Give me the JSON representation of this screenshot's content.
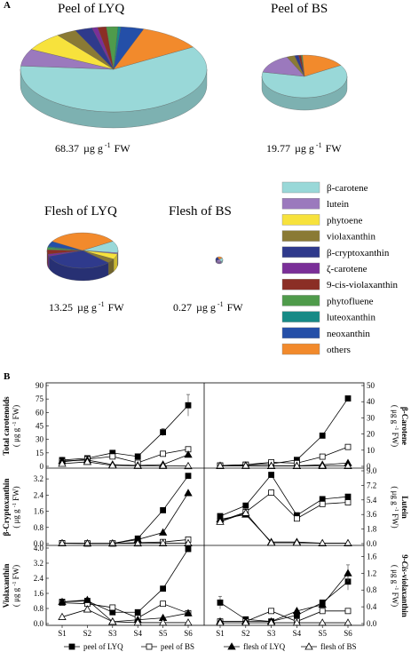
{
  "panel_a": {
    "label": "A",
    "pies": [
      {
        "title": "Peel of LYQ",
        "total": "68.37",
        "unit_text": "µg g",
        "exp": "-1",
        "basis": "FW",
        "slices": [
          0.6,
          0.065,
          0.07,
          0.035,
          0.03,
          0.01,
          0.015,
          0.02,
          0.005,
          0.04,
          0.11
        ]
      },
      {
        "title": "Peel of BS",
        "total": "19.77",
        "unit_text": "µg g",
        "exp": "-1",
        "basis": "FW",
        "slices": [
          0.62,
          0.15,
          0.0,
          0.03,
          0.015,
          0.0,
          0.01,
          0.005,
          0.0,
          0.0,
          0.17
        ]
      },
      {
        "title": "Flesh of LYQ",
        "total": "13.25",
        "unit_text": "µg g",
        "exp": "-1",
        "basis": "FW",
        "slices": [
          0.11,
          0.01,
          0.05,
          0.04,
          0.33,
          0.02,
          0.04,
          0.02,
          0.01,
          0.05,
          0.33
        ]
      },
      {
        "title": "Flesh of BS",
        "total": "0.27",
        "unit_text": "µg g",
        "exp": "-1",
        "basis": "FW",
        "slices": [
          0.25,
          0.25,
          0.0,
          0.0,
          0.25,
          0.0,
          0.0,
          0.0,
          0.0,
          0.0,
          0.25
        ]
      }
    ],
    "legend": [
      {
        "label": "β-carotene",
        "color": "#99d8d8"
      },
      {
        "label": "lutein",
        "color": "#9b79bd"
      },
      {
        "label": "phytoene",
        "color": "#f7e23c"
      },
      {
        "label": "violaxanthin",
        "color": "#8a7a35"
      },
      {
        "label": "β-cryptoxanthin",
        "color": "#2f3a8c"
      },
      {
        "label": "ζ-carotene",
        "color": "#7a2f98"
      },
      {
        "label": "9-cis-violaxanthin",
        "color": "#8b2e25"
      },
      {
        "label": "phytofluene",
        "color": "#4f9b4b"
      },
      {
        "label": "luteoxanthin",
        "color": "#168a86"
      },
      {
        "label": "neoxanthin",
        "color": "#244fa8"
      },
      {
        "label": "others",
        "color": "#f28a2c"
      }
    ]
  },
  "panel_b": {
    "label": "B",
    "categories": [
      "S1",
      "S2",
      "S3",
      "S4",
      "S5",
      "S6"
    ],
    "legend": [
      "peel of LYQ",
      "peel of BS",
      "flesh of LYQ",
      "flesh of BS"
    ],
    "left_charts": [
      {
        "ylabel": "Total carotenoids",
        "ylim": [
          0,
          90
        ],
        "ticks": [
          "0",
          "15",
          "30",
          "45",
          "60",
          "75",
          "90"
        ],
        "tick_values": [
          0,
          15,
          30,
          45,
          60,
          75,
          90
        ],
        "series": [
          [
            7,
            9,
            15,
            11,
            38,
            68
          ],
          [
            5,
            8,
            11,
            4,
            14,
            19
          ],
          [
            6,
            7,
            2,
            1,
            2,
            13
          ],
          [
            3,
            5,
            1,
            0.5,
            0.5,
            0.3
          ]
        ],
        "errors": [
          [
            0,
            0,
            0,
            0,
            4,
            12
          ],
          [
            0,
            0,
            0,
            0,
            0,
            0
          ],
          [
            0,
            0,
            0,
            0,
            0,
            0
          ],
          [
            0,
            0,
            0,
            0,
            0,
            0
          ]
        ]
      },
      {
        "ylabel": "β-Cryptoxanthin",
        "ylim": [
          0,
          3.6
        ],
        "ticks": [
          "0.0",
          "0.8",
          "1.6",
          "2.4",
          "3.2"
        ],
        "tick_values": [
          0,
          0.8,
          1.6,
          2.4,
          3.2
        ],
        "series": [
          [
            0.02,
            0.01,
            0.01,
            0.25,
            1.65,
            3.35
          ],
          [
            0.02,
            0.01,
            0.01,
            0.05,
            0.08,
            0.2
          ],
          [
            0.02,
            0.01,
            0.01,
            0.2,
            0.55,
            2.5
          ],
          [
            0.02,
            0.01,
            0.01,
            0.01,
            0.02,
            0.02
          ]
        ],
        "errors": [
          [
            0,
            0,
            0,
            0,
            0,
            0
          ],
          [
            0,
            0,
            0,
            0,
            0,
            0
          ],
          [
            0,
            0,
            0,
            0,
            0,
            0
          ],
          [
            0,
            0,
            0,
            0,
            0,
            0
          ]
        ]
      },
      {
        "ylabel": "Violaxanthin",
        "ylim": [
          0,
          4.0
        ],
        "ticks": [
          "0.0",
          "0.8",
          "1.6",
          "2.4",
          "3.2",
          "4.0"
        ],
        "tick_values": [
          0,
          0.8,
          1.6,
          2.4,
          3.2,
          4.0
        ],
        "series": [
          [
            1.15,
            1.2,
            0.6,
            0.6,
            1.85,
            3.95
          ],
          [
            1.1,
            1.05,
            0.85,
            0.3,
            1.05,
            0.55
          ],
          [
            1.15,
            1.25,
            0.1,
            0.2,
            0.3,
            0.55
          ],
          [
            0.35,
            0.75,
            0.1,
            0.05,
            0.05,
            0.05
          ]
        ],
        "errors": [
          [
            0,
            0,
            0,
            0,
            0,
            0
          ],
          [
            0,
            0,
            0,
            0,
            0,
            0
          ],
          [
            0,
            0,
            0,
            0,
            0,
            0
          ],
          [
            0,
            0,
            0,
            0,
            0,
            0
          ]
        ]
      }
    ],
    "right_charts": [
      {
        "ylabel": "β-Carotene",
        "ylim": [
          0,
          50
        ],
        "ticks": [
          "0",
          "10",
          "20",
          "30",
          "40",
          "50"
        ],
        "tick_values": [
          0,
          10,
          20,
          30,
          40,
          50
        ],
        "series": [
          [
            0.5,
            1,
            1.5,
            4,
            19,
            42
          ],
          [
            0.5,
            1,
            2.5,
            2,
            6,
            12
          ],
          [
            0.3,
            0.5,
            0.3,
            0.3,
            1,
            2
          ],
          [
            0.3,
            0.3,
            0.2,
            0.2,
            0.2,
            0.2
          ]
        ],
        "errors": [
          [
            0,
            0,
            0,
            0,
            0,
            0
          ],
          [
            0,
            0,
            0,
            0,
            0,
            0
          ],
          [
            0,
            0,
            0,
            0,
            0,
            0
          ],
          [
            0,
            0,
            0,
            0,
            0,
            0
          ]
        ]
      },
      {
        "ylabel": "Lutein",
        "ylim": [
          0,
          9.0
        ],
        "ticks": [
          "0.0",
          "1.8",
          "3.6",
          "5.4",
          "7.2",
          "9.0"
        ],
        "tick_values": [
          0,
          1.8,
          3.6,
          5.4,
          7.2,
          9.0
        ],
        "series": [
          [
            3.4,
            4.7,
            8.5,
            3.5,
            5.5,
            5.8
          ],
          [
            2.8,
            3.9,
            6.3,
            3.1,
            4.9,
            5.1
          ],
          [
            3.0,
            3.6,
            0.2,
            0.2,
            0.05,
            0.05
          ],
          [
            2.7,
            3.8,
            0.1,
            0.1,
            0.05,
            0.05
          ]
        ],
        "errors": [
          [
            0,
            0,
            0,
            0,
            0,
            0
          ],
          [
            0,
            0,
            0,
            0,
            0,
            0
          ],
          [
            0,
            0,
            0,
            0,
            0,
            0
          ],
          [
            0,
            0,
            0,
            0,
            0,
            0
          ]
        ]
      },
      {
        "ylabel": "9-Cis-violaxanthin",
        "ylim": [
          0,
          1.8
        ],
        "ticks": [
          "0.0",
          "0.4",
          "0.8",
          "1.2",
          "1.6"
        ],
        "tick_values": [
          0,
          0.4,
          0.8,
          1.2,
          1.6
        ],
        "series": [
          [
            0.5,
            0.1,
            0.05,
            0.2,
            0.5,
            1.0
          ],
          [
            0.05,
            0.05,
            0.3,
            0.05,
            0.3,
            0.3
          ],
          [
            0.05,
            0.05,
            0.05,
            0.3,
            0.45,
            1.2
          ],
          [
            0.02,
            0.02,
            0.02,
            0.02,
            0.02,
            0.02
          ]
        ],
        "errors": [
          [
            0.15,
            0.05,
            0,
            0,
            0,
            0.2
          ],
          [
            0,
            0,
            0,
            0,
            0,
            0
          ],
          [
            0,
            0,
            0,
            0,
            0,
            0.2
          ],
          [
            0,
            0,
            0,
            0,
            0,
            0
          ]
        ]
      }
    ],
    "unit_main": "μg g",
    "unit_exp": "-1",
    "unit_basis": "FW"
  },
  "chart_data": [
    {
      "type": "pie",
      "title": "Peel of LYQ",
      "labels": [
        "β-carotene",
        "lutein",
        "phytoene",
        "violaxanthin",
        "β-cryptoxanthin",
        "ζ-carotene",
        "9-cis-violaxanthin",
        "phytofluene",
        "luteoxanthin",
        "neoxanthin",
        "others"
      ],
      "values": [
        0.6,
        0.065,
        0.07,
        0.035,
        0.03,
        0.01,
        0.015,
        0.02,
        0.005,
        0.04,
        0.11
      ]
    },
    {
      "type": "pie",
      "title": "Peel of BS",
      "labels": [
        "β-carotene",
        "lutein",
        "phytoene",
        "violaxanthin",
        "β-cryptoxanthin",
        "ζ-carotene",
        "9-cis-violaxanthin",
        "phytofluene",
        "luteoxanthin",
        "neoxanthin",
        "others"
      ],
      "values": [
        0.62,
        0.15,
        0.0,
        0.03,
        0.015,
        0.0,
        0.01,
        0.005,
        0.0,
        0.0,
        0.17
      ]
    },
    {
      "type": "pie",
      "title": "Flesh of LYQ",
      "labels": [
        "β-carotene",
        "lutein",
        "phytoene",
        "violaxanthin",
        "β-cryptoxanthin",
        "ζ-carotene",
        "9-cis-violaxanthin",
        "phytofluene",
        "luteoxanthin",
        "neoxanthin",
        "others"
      ],
      "values": [
        0.11,
        0.01,
        0.05,
        0.04,
        0.33,
        0.02,
        0.04,
        0.02,
        0.01,
        0.05,
        0.33
      ]
    },
    {
      "type": "pie",
      "title": "Flesh of BS",
      "labels": [
        "β-carotene",
        "lutein",
        "phytoene",
        "violaxanthin",
        "β-cryptoxanthin",
        "ζ-carotene",
        "9-cis-violaxanthin",
        "phytofluene",
        "luteoxanthin",
        "neoxanthin",
        "others"
      ],
      "values": [
        0.25,
        0.25,
        0.0,
        0.0,
        0.25,
        0.0,
        0.0,
        0.0,
        0.0,
        0.0,
        0.25
      ]
    },
    {
      "type": "line",
      "ylabel": "Total carotenoids",
      "categories": [
        "S1",
        "S2",
        "S3",
        "S4",
        "S5",
        "S6"
      ],
      "ylim": [
        0,
        90
      ],
      "series": [
        {
          "name": "peel of LYQ",
          "values": [
            7,
            9,
            15,
            11,
            38,
            68
          ]
        },
        {
          "name": "peel of BS",
          "values": [
            5,
            8,
            11,
            4,
            14,
            19
          ]
        },
        {
          "name": "flesh of LYQ",
          "values": [
            6,
            7,
            2,
            1,
            2,
            13
          ]
        },
        {
          "name": "flesh of BS",
          "values": [
            3,
            5,
            1,
            0.5,
            0.5,
            0.3
          ]
        }
      ]
    },
    {
      "type": "line",
      "ylabel": "β-Carotene",
      "categories": [
        "S1",
        "S2",
        "S3",
        "S4",
        "S5",
        "S6"
      ],
      "ylim": [
        0,
        50
      ],
      "series": [
        {
          "name": "peel of LYQ",
          "values": [
            0.5,
            1,
            1.5,
            4,
            19,
            42
          ]
        },
        {
          "name": "peel of BS",
          "values": [
            0.5,
            1,
            2.5,
            2,
            6,
            12
          ]
        },
        {
          "name": "flesh of LYQ",
          "values": [
            0.3,
            0.5,
            0.3,
            0.3,
            1,
            2
          ]
        },
        {
          "name": "flesh of BS",
          "values": [
            0.3,
            0.3,
            0.2,
            0.2,
            0.2,
            0.2
          ]
        }
      ]
    },
    {
      "type": "line",
      "ylabel": "β-Cryptoxanthin",
      "categories": [
        "S1",
        "S2",
        "S3",
        "S4",
        "S5",
        "S6"
      ],
      "ylim": [
        0,
        3.6
      ],
      "series": [
        {
          "name": "peel of LYQ",
          "values": [
            0.02,
            0.01,
            0.01,
            0.25,
            1.65,
            3.35
          ]
        },
        {
          "name": "peel of BS",
          "values": [
            0.02,
            0.01,
            0.01,
            0.05,
            0.08,
            0.2
          ]
        },
        {
          "name": "flesh of LYQ",
          "values": [
            0.02,
            0.01,
            0.01,
            0.2,
            0.55,
            2.5
          ]
        },
        {
          "name": "flesh of BS",
          "values": [
            0.02,
            0.01,
            0.01,
            0.01,
            0.02,
            0.02
          ]
        }
      ]
    },
    {
      "type": "line",
      "ylabel": "Lutein",
      "categories": [
        "S1",
        "S2",
        "S3",
        "S4",
        "S5",
        "S6"
      ],
      "ylim": [
        0,
        9.0
      ],
      "series": [
        {
          "name": "peel of LYQ",
          "values": [
            3.4,
            4.7,
            8.5,
            3.5,
            5.5,
            5.8
          ]
        },
        {
          "name": "peel of BS",
          "values": [
            2.8,
            3.9,
            6.3,
            3.1,
            4.9,
            5.1
          ]
        },
        {
          "name": "flesh of LYQ",
          "values": [
            3.0,
            3.6,
            0.2,
            0.2,
            0.05,
            0.05
          ]
        },
        {
          "name": "flesh of BS",
          "values": [
            2.7,
            3.8,
            0.1,
            0.1,
            0.05,
            0.05
          ]
        }
      ]
    },
    {
      "type": "line",
      "ylabel": "Violaxanthin",
      "categories": [
        "S1",
        "S2",
        "S3",
        "S4",
        "S5",
        "S6"
      ],
      "ylim": [
        0,
        4.0
      ],
      "series": [
        {
          "name": "peel of LYQ",
          "values": [
            1.15,
            1.2,
            0.6,
            0.6,
            1.85,
            3.95
          ]
        },
        {
          "name": "peel of BS",
          "values": [
            1.1,
            1.05,
            0.85,
            0.3,
            1.05,
            0.55
          ]
        },
        {
          "name": "flesh of LYQ",
          "values": [
            1.15,
            1.25,
            0.1,
            0.2,
            0.3,
            0.55
          ]
        },
        {
          "name": "flesh of BS",
          "values": [
            0.35,
            0.75,
            0.1,
            0.05,
            0.05,
            0.05
          ]
        }
      ]
    },
    {
      "type": "line",
      "ylabel": "9-Cis-violaxanthin",
      "categories": [
        "S1",
        "S2",
        "S3",
        "S4",
        "S5",
        "S6"
      ],
      "ylim": [
        0,
        1.8
      ],
      "series": [
        {
          "name": "peel of LYQ",
          "values": [
            0.5,
            0.1,
            0.05,
            0.2,
            0.5,
            1.0
          ]
        },
        {
          "name": "peel of BS",
          "values": [
            0.05,
            0.05,
            0.3,
            0.05,
            0.3,
            0.3
          ]
        },
        {
          "name": "flesh of LYQ",
          "values": [
            0.05,
            0.05,
            0.05,
            0.3,
            0.45,
            1.2
          ]
        },
        {
          "name": "flesh of BS",
          "values": [
            0.02,
            0.02,
            0.02,
            0.02,
            0.02,
            0.02
          ]
        }
      ]
    }
  ]
}
